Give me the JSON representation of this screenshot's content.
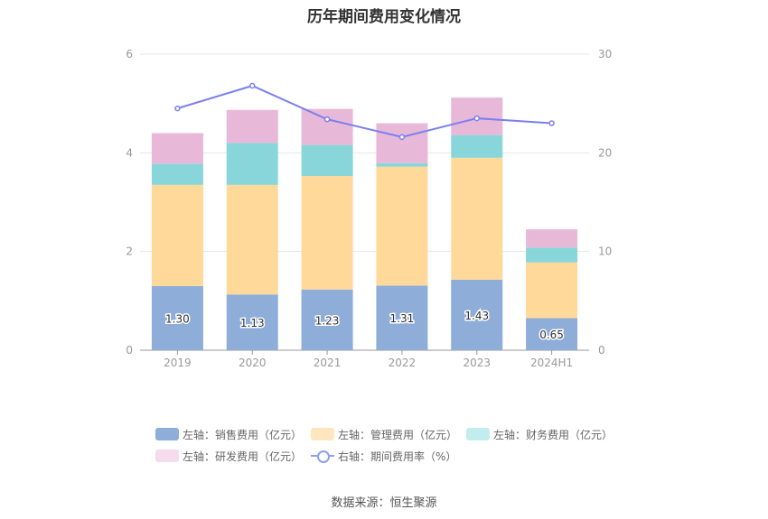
{
  "title": "历年期间费用变化情况",
  "source": "数据来源：恒生聚源",
  "colors": {
    "sales": "#8eadd9",
    "admin": "#ffd99a",
    "finance": "#88d6d9",
    "rd": "#e8b8d8",
    "rate": "#7b7ff0",
    "rate_legend": "#8aa0f0",
    "axis_text": "#999999",
    "grid": "#e6e6e6"
  },
  "legend": [
    {
      "label": "左轴：销售费用（亿元）",
      "color": "#8eadd9",
      "type": "bar"
    },
    {
      "label": "左轴：管理费用（亿元）",
      "color": "#ffe6bf",
      "type": "bar"
    },
    {
      "label": "左轴：财务费用（亿元）",
      "color": "#c2ecee",
      "type": "bar"
    },
    {
      "label": "左轴：研发费用（亿元）",
      "color": "#f4dcec",
      "type": "bar"
    },
    {
      "label": "右轴：期间费用率（%）",
      "color": "#8aa0f0",
      "type": "line"
    }
  ],
  "chart_data": {
    "type": "bar",
    "stacked": true,
    "title": "历年期间费用变化情况",
    "categories": [
      "2019",
      "2020",
      "2021",
      "2022",
      "2023",
      "2024H1"
    ],
    "y_left": {
      "min": 0,
      "max": 6,
      "ticks": [
        0,
        2,
        4,
        6
      ]
    },
    "y_right": {
      "min": 0,
      "max": 30,
      "ticks": [
        0,
        10,
        20,
        30
      ]
    },
    "grid": true,
    "legend_position": "bottom",
    "series": [
      {
        "name": "左轴：销售费用（亿元）",
        "axis": "left",
        "values": [
          1.3,
          1.13,
          1.23,
          1.31,
          1.43,
          0.65
        ],
        "labels": [
          "1.30",
          "1.13",
          "1.23",
          "1.31",
          "1.43",
          "0.65"
        ]
      },
      {
        "name": "左轴：管理费用（亿元）",
        "axis": "left",
        "values": [
          2.05,
          2.22,
          2.3,
          2.41,
          2.47,
          1.13
        ]
      },
      {
        "name": "左轴：财务费用（亿元）",
        "axis": "left",
        "values": [
          0.43,
          0.85,
          0.63,
          0.07,
          0.46,
          0.3
        ]
      },
      {
        "name": "左轴：研发费用（亿元）",
        "axis": "left",
        "values": [
          0.62,
          0.67,
          0.73,
          0.81,
          0.76,
          0.37
        ]
      },
      {
        "name": "右轴：期间费用率（%）",
        "axis": "right",
        "type": "line",
        "values": [
          24.5,
          26.8,
          23.4,
          21.6,
          23.5,
          23.0
        ]
      }
    ]
  }
}
